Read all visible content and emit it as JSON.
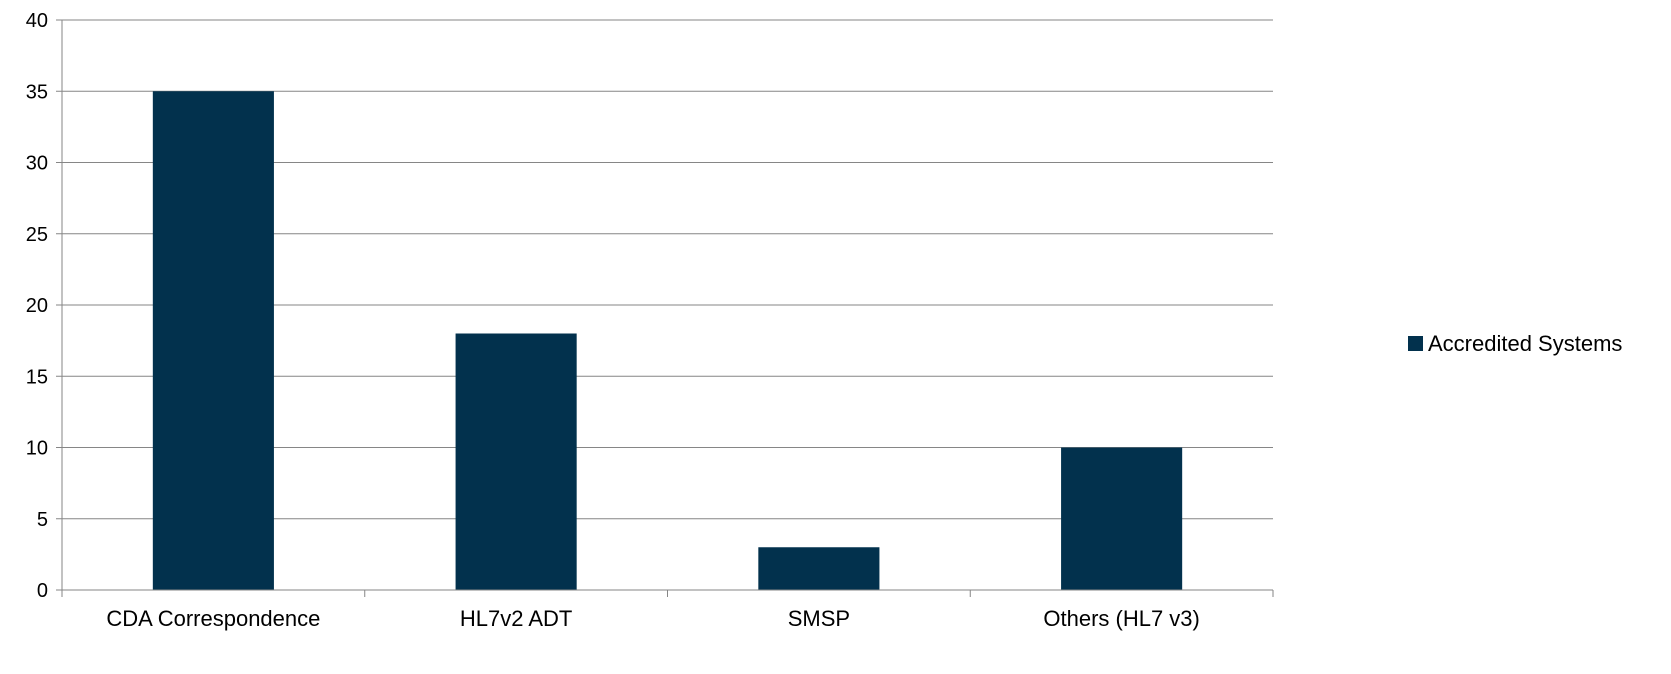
{
  "chart_data": {
    "type": "bar",
    "categories": [
      "CDA Correspondence",
      "HL7v2 ADT",
      "SMSP",
      "Others (HL7 v3)"
    ],
    "series": [
      {
        "name": "Accredited  Systems",
        "values": [
          35,
          18,
          3,
          10
        ],
        "color": "#02314d"
      }
    ],
    "ylim": [
      0,
      40
    ],
    "yticks": [
      0,
      5,
      10,
      15,
      20,
      25,
      30,
      35,
      40
    ],
    "grid": true,
    "legend_position": "right",
    "title": "",
    "xlabel": "",
    "ylabel": ""
  }
}
